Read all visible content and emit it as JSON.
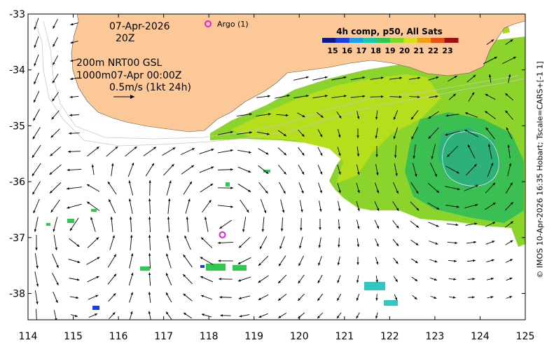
{
  "map": {
    "date_label": "07-Apr-2026",
    "time_label": "20Z",
    "product_line": "200m  NRT00 GSL",
    "analysis_line": "1000m07-Apr 00:00Z",
    "scale_arrow_label": "0.5m/s (1kt 24h)",
    "argo_legend": "Argo (1)",
    "colorbar_title": "4h comp, p50, All Sats",
    "colorbar_ticks": [
      "15",
      "16",
      "17",
      "18",
      "19",
      "20",
      "21",
      "22",
      "23"
    ],
    "colorbar_colors": [
      "#0a1a8a",
      "#1a3ee0",
      "#1aa0e8",
      "#18c8b0",
      "#30c850",
      "#80d828",
      "#d8e01a",
      "#f0a018",
      "#e85018",
      "#a01010"
    ],
    "x_tick_labels": [
      "114",
      "115",
      "116",
      "117",
      "118",
      "119",
      "120",
      "121",
      "122",
      "123",
      "124",
      "125"
    ],
    "y_tick_labels": [
      "-33",
      "-34",
      "-35",
      "-36",
      "-37",
      "-38"
    ],
    "credit": "© IMOS 10-Apr-2026 16:35 Hobart; Tscale=CARS+[-1 1]",
    "colors": {
      "land": "#fcc898",
      "argo": "#e020e0",
      "arrow": "#000000",
      "contour": "#d0d0d0"
    },
    "argo_float_position": {
      "lon": 118.3,
      "lat": -36.95
    }
  }
}
